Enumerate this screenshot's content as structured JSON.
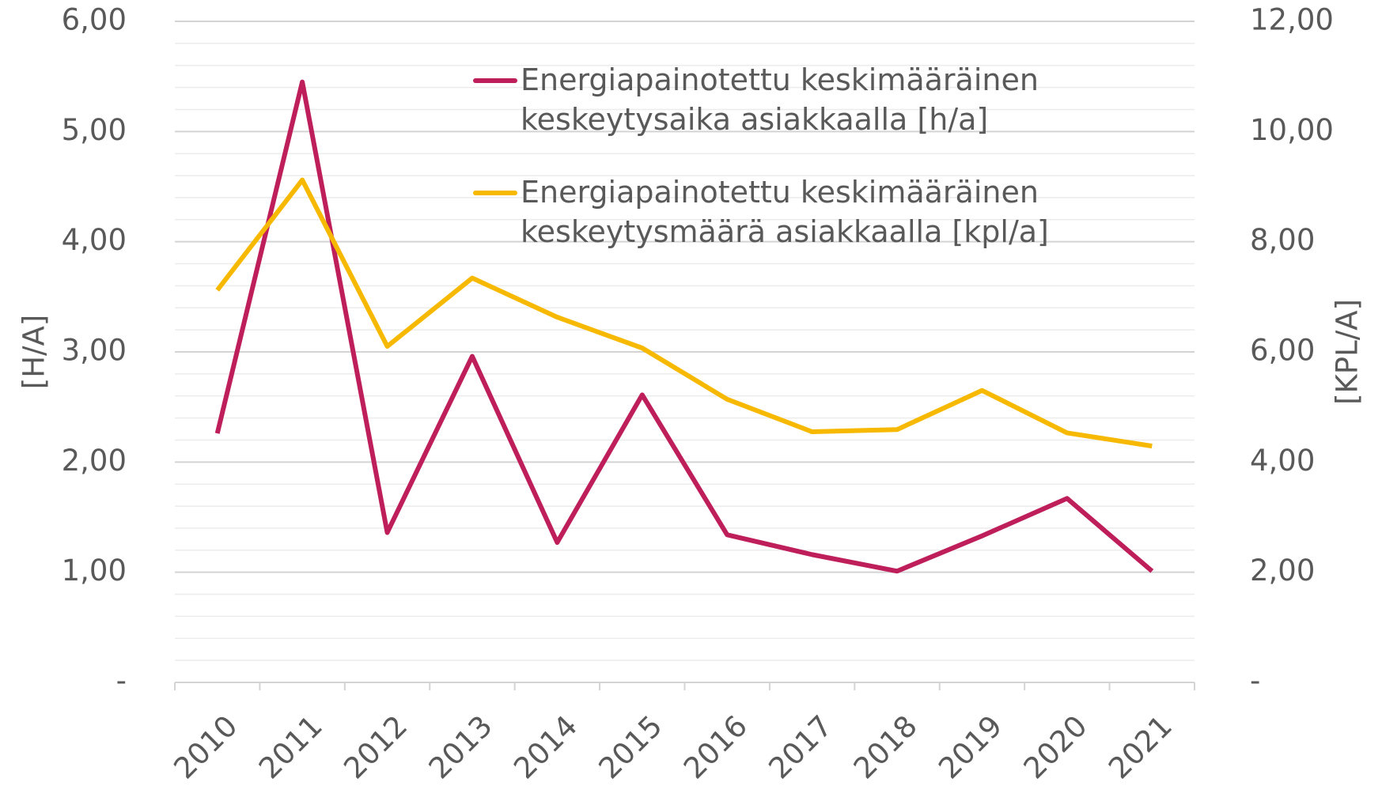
{
  "chart_data": {
    "type": "line",
    "categories": [
      "2010",
      "2011",
      "2012",
      "2013",
      "2014",
      "2015",
      "2016",
      "2017",
      "2018",
      "2019",
      "2020",
      "2021"
    ],
    "series": [
      {
        "name": "Energiapainotettu keskimääräinen keskeytysaika asiakkaalla [h/a]",
        "color": "#be1e5a",
        "axis": "y",
        "values": [
          2.26,
          5.45,
          1.36,
          2.96,
          1.27,
          2.61,
          1.34,
          1.16,
          1.01,
          1.33,
          1.67,
          1.01
        ]
      },
      {
        "name": "Energiapainotettu keskimääräinen keskeytysmäärä asiakkaalla [kpl/a]",
        "color": "#f7b900",
        "axis": "y2",
        "values": [
          7.12,
          9.12,
          6.1,
          7.34,
          6.63,
          6.07,
          5.14,
          4.55,
          4.59,
          5.3,
          4.53,
          4.29
        ]
      }
    ],
    "ylabel": "[H/A]",
    "y2label": "[KPL/A]",
    "ylim": [
      0,
      6
    ],
    "yticks": [
      {
        "value": 0,
        "label": "-"
      },
      {
        "value": 1,
        "label": "1,00"
      },
      {
        "value": 2,
        "label": "2,00"
      },
      {
        "value": 3,
        "label": "3,00"
      },
      {
        "value": 4,
        "label": "4,00"
      },
      {
        "value": 5,
        "label": "5,00"
      },
      {
        "value": 6,
        "label": "6,00"
      }
    ],
    "yminorticks": [
      0.2,
      0.4,
      0.6,
      0.8,
      1.2,
      1.4,
      1.6,
      1.8,
      2.2,
      2.4,
      2.6,
      2.8,
      3.2,
      3.4,
      3.6,
      3.8,
      4.2,
      4.4,
      4.6,
      4.8,
      5.2,
      5.4,
      5.6,
      5.8
    ],
    "y2lim": [
      0,
      12
    ],
    "y2ticks": [
      {
        "value": 0,
        "label": "-"
      },
      {
        "value": 2,
        "label": "2,00"
      },
      {
        "value": 4,
        "label": "4,00"
      },
      {
        "value": 6,
        "label": "6,00"
      },
      {
        "value": 8,
        "label": "8,00"
      },
      {
        "value": 10,
        "label": "10,00"
      },
      {
        "value": 12,
        "label": "12,00"
      }
    ],
    "grid": true,
    "legend": "top-right"
  }
}
